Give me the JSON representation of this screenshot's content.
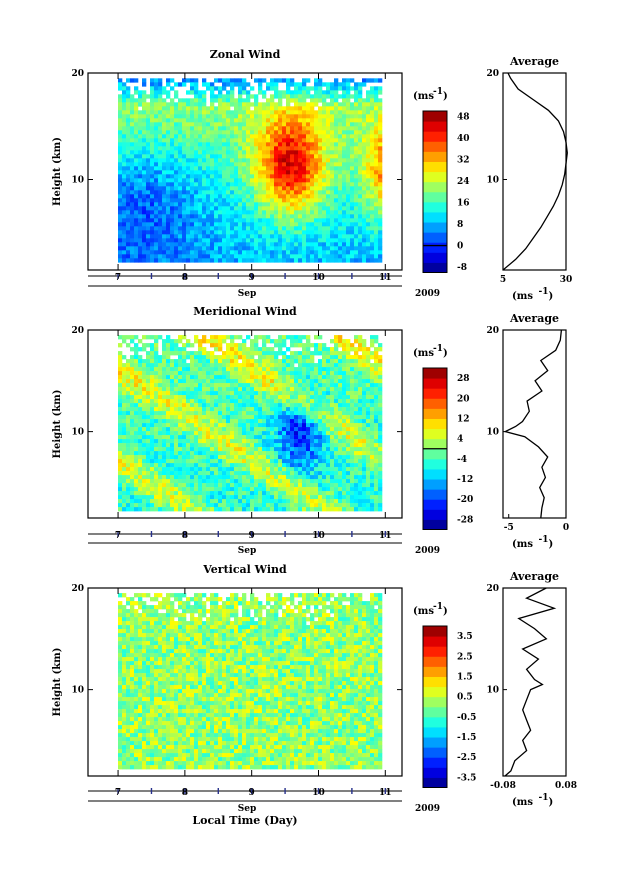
{
  "chart_data": [
    {
      "type": "heatmap",
      "title": "Zonal Wind",
      "ylabel": "Height (km)",
      "xlabel": "Sep",
      "year_label": "2009",
      "x_ticks": [
        "7",
        "8",
        "9",
        "10",
        "11"
      ],
      "xlim": [
        6.55,
        11.25
      ],
      "ylim": [
        1.5,
        20
      ],
      "y_ticks": [
        10,
        20
      ],
      "colorbar": {
        "unit": "(ms",
        "unit_exp": "-1",
        "unit_close": ")",
        "range": [
          -10,
          50
        ],
        "ticks": [
          "48",
          "40",
          "32",
          "24",
          "16",
          "8",
          "0",
          "-8"
        ],
        "tick_values": [
          48,
          40,
          32,
          24,
          16,
          8,
          0,
          -8
        ],
        "contour_value": 0
      },
      "profile": {
        "title": "Average",
        "xlabel": "(ms",
        "xlabel_exp": "-1",
        "xlabel_close": ")",
        "x_ticks": [
          "5",
          "30"
        ],
        "x_tick_values": [
          5,
          30
        ],
        "xlim": [
          5,
          30
        ],
        "y_ticks": [
          10,
          20
        ],
        "series": {
          "height": [
            1.5,
            2.5,
            3.5,
            4.5,
            5.5,
            6.5,
            7.5,
            8.5,
            9.5,
            10.5,
            11.5,
            12.5,
            13.5,
            14.5,
            15.5,
            16.5,
            17.5,
            18.5,
            19.5,
            20
          ],
          "value": [
            5,
            10,
            14,
            17,
            20,
            22.5,
            25,
            27,
            28.5,
            29.5,
            30,
            30.5,
            30,
            29,
            27,
            23,
            17,
            11,
            8,
            7
          ]
        }
      }
    },
    {
      "type": "heatmap",
      "title": "Meridional Wind",
      "ylabel": "Height (km)",
      "xlabel": "Sep",
      "year_label": "2009",
      "x_ticks": [
        "7",
        "8",
        "9",
        "10",
        "11"
      ],
      "xlim": [
        6.55,
        11.25
      ],
      "ylim": [
        1.5,
        20
      ],
      "y_ticks": [
        10,
        20
      ],
      "colorbar": {
        "unit": "(ms",
        "unit_exp": "-1",
        "unit_close": ")",
        "range": [
          -32,
          32
        ],
        "ticks": [
          "28",
          "20",
          "12",
          "4",
          "-4",
          "-12",
          "-20",
          "-28"
        ],
        "tick_values": [
          28,
          20,
          12,
          4,
          -4,
          -12,
          -20,
          -28
        ],
        "contour_value": 0
      },
      "profile": {
        "title": "Average",
        "xlabel": "(ms",
        "xlabel_exp": "-1",
        "xlabel_close": ")",
        "x_ticks": [
          "-5",
          "0"
        ],
        "x_tick_values": [
          -5,
          0
        ],
        "xlim": [
          -5.5,
          0
        ],
        "y_ticks": [
          10,
          20
        ],
        "series": {
          "height": [
            1.5,
            2.5,
            3.5,
            4.5,
            5.5,
            6.5,
            7.5,
            8.5,
            9.5,
            10,
            10.5,
            11,
            12,
            13,
            14,
            15,
            16,
            17,
            18,
            19,
            20
          ],
          "value": [
            -2.2,
            -2.1,
            -1.9,
            -2.3,
            -1.8,
            -2.1,
            -1.6,
            -2.4,
            -3.6,
            -5.3,
            -4.4,
            -3.8,
            -3.2,
            -3.4,
            -2.1,
            -2.7,
            -1.6,
            -2.2,
            -0.9,
            -0.5,
            -0.4
          ]
        }
      }
    },
    {
      "type": "heatmap",
      "title": "Vertical Wind",
      "ylabel": "Height (km)",
      "xlabel": "Sep",
      "year_label": "2009",
      "x_ticks": [
        "7",
        "8",
        "9",
        "10",
        "11"
      ],
      "xlim": [
        6.55,
        11.25
      ],
      "ylim": [
        1.5,
        20
      ],
      "y_ticks": [
        10,
        20
      ],
      "colorbar": {
        "unit": "(ms",
        "unit_exp": "-1",
        "unit_close": ")",
        "range": [
          -4,
          4
        ],
        "ticks": [
          "3.5",
          "2.5",
          "1.5",
          "0.5",
          "-0.5",
          "-1.5",
          "-2.5",
          "-3.5"
        ],
        "tick_values": [
          3.5,
          2.5,
          1.5,
          0.5,
          -0.5,
          -1.5,
          -2.5,
          -3.5
        ]
      },
      "profile": {
        "title": "Average",
        "xlabel": "(ms",
        "xlabel_exp": "-1",
        "xlabel_close": ")",
        "x_ticks": [
          "-0.08",
          "0.08"
        ],
        "x_tick_values": [
          -0.08,
          0.08
        ],
        "xlim": [
          -0.08,
          0.08
        ],
        "y_ticks": [
          10,
          20
        ],
        "series": {
          "height": [
            1.5,
            2,
            3,
            4,
            5,
            6,
            7,
            8,
            9,
            10,
            10.5,
            11,
            12,
            13,
            14,
            15,
            16,
            17,
            18,
            19,
            20
          ],
          "value": [
            -0.075,
            -0.06,
            -0.05,
            -0.02,
            -0.03,
            -0.01,
            -0.02,
            -0.03,
            -0.02,
            -0.01,
            0.02,
            0.0,
            -0.02,
            0.01,
            -0.03,
            0.03,
            0.0,
            -0.04,
            0.05,
            -0.02,
            0.03
          ]
        }
      }
    }
  ],
  "footer": {
    "xlabel": "Local Time (Day)"
  }
}
